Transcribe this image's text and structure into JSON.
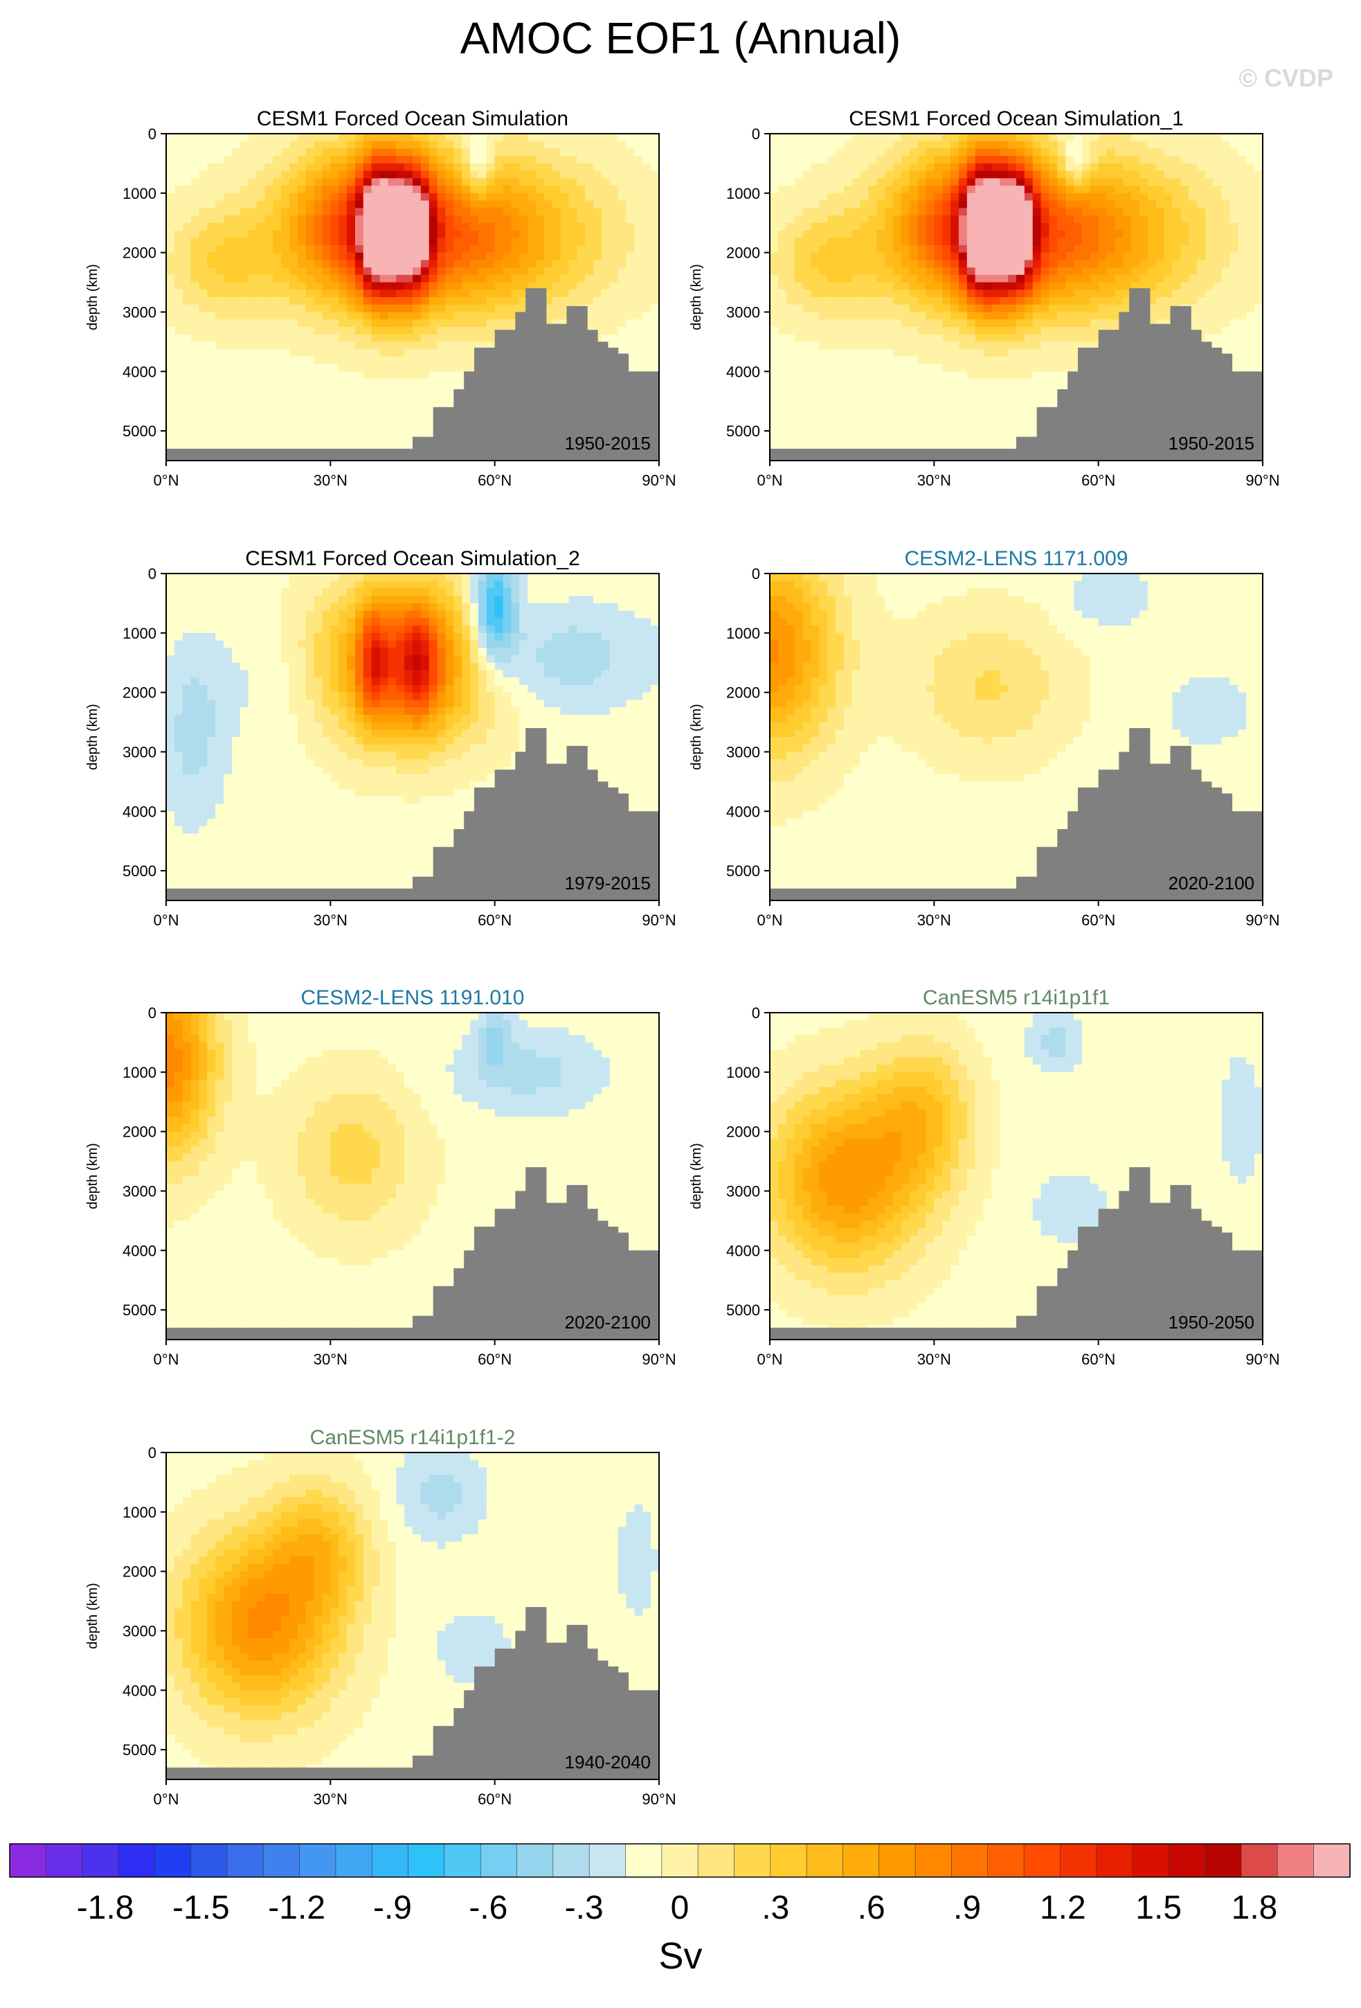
{
  "title": "AMOC EOF1 (Annual)",
  "watermark": "© CVDP",
  "chart_data": [
    {
      "type": "heatmap",
      "title": "CESM1 Forced Ocean Simulation",
      "title_color": "#000000",
      "period": "1950-2015",
      "ylabel": "depth (km)",
      "xlim": [
        0,
        90
      ],
      "ylim": [
        5500,
        0
      ],
      "xticks": [
        "0°N",
        "30°N",
        "60°N",
        "90°N"
      ],
      "yticks": [
        "0",
        "1000",
        "2000",
        "3000",
        "4000",
        "5000"
      ],
      "blobs": [
        [
          50,
          1700,
          25,
          1300,
          1.0
        ],
        [
          35,
          1500,
          12,
          1200,
          0.6
        ],
        [
          38,
          1600,
          3,
          1100,
          1.0
        ],
        [
          42,
          1600,
          4,
          1100,
          1.2
        ],
        [
          46,
          1600,
          3,
          1000,
          0.9
        ],
        [
          57,
          600,
          3,
          600,
          -0.4
        ],
        [
          10,
          2200,
          10,
          900,
          0.3
        ]
      ],
      "bathymetry": [
        5300,
        5300,
        5300,
        5300,
        5300,
        5300,
        5300,
        5300,
        5300,
        5300,
        5300,
        5300,
        5300,
        5300,
        5300,
        5300,
        5300,
        5300,
        5300,
        5300,
        5300,
        5300,
        5300,
        5300,
        5100,
        5100,
        4600,
        4600,
        4300,
        4000,
        3600,
        3600,
        3300,
        3300,
        3000,
        2600,
        2600,
        3200,
        3200,
        2900,
        2900,
        3300,
        3500,
        3600,
        3700,
        4000,
        4000,
        4000
      ]
    },
    {
      "type": "heatmap",
      "title": "CESM1 Forced Ocean Simulation_1",
      "title_color": "#000000",
      "period": "1950-2015",
      "ylabel": "depth (km)",
      "xlim": [
        0,
        90
      ],
      "ylim": [
        5500,
        0
      ],
      "xticks": [
        "0°N",
        "30°N",
        "60°N",
        "90°N"
      ],
      "yticks": [
        "0",
        "1000",
        "2000",
        "3000",
        "4000",
        "5000"
      ],
      "blobs": [
        [
          50,
          1700,
          25,
          1300,
          1.0
        ],
        [
          35,
          1500,
          12,
          1200,
          0.6
        ],
        [
          38,
          1600,
          3,
          1100,
          1.0
        ],
        [
          42,
          1600,
          4,
          1100,
          1.3
        ],
        [
          46,
          1600,
          3,
          1000,
          0.9
        ],
        [
          56,
          500,
          3,
          500,
          -0.4
        ],
        [
          10,
          2200,
          10,
          900,
          0.3
        ]
      ],
      "bathymetry": [
        5300,
        5300,
        5300,
        5300,
        5300,
        5300,
        5300,
        5300,
        5300,
        5300,
        5300,
        5300,
        5300,
        5300,
        5300,
        5300,
        5300,
        5300,
        5300,
        5300,
        5300,
        5300,
        5300,
        5300,
        5100,
        5100,
        4600,
        4600,
        4300,
        4000,
        3600,
        3600,
        3300,
        3300,
        3000,
        2600,
        2600,
        3200,
        3200,
        2900,
        2900,
        3300,
        3500,
        3600,
        3700,
        4000,
        4000,
        4000
      ]
    },
    {
      "type": "heatmap",
      "title": "CESM1 Forced Ocean Simulation_2",
      "title_color": "#000000",
      "period": "1979-2015",
      "ylabel": "depth (km)",
      "xlim": [
        0,
        90
      ],
      "ylim": [
        5500,
        0
      ],
      "xticks": [
        "0°N",
        "30°N",
        "60°N",
        "90°N"
      ],
      "yticks": [
        "0",
        "1000",
        "2000",
        "3000",
        "4000",
        "5000"
      ],
      "blobs": [
        [
          44,
          1500,
          16,
          1300,
          0.9
        ],
        [
          46,
          1500,
          4,
          1000,
          0.6
        ],
        [
          38,
          1500,
          3,
          1000,
          0.6
        ],
        [
          60,
          600,
          4,
          900,
          -0.7
        ],
        [
          70,
          1400,
          18,
          900,
          -0.25
        ],
        [
          5,
          2700,
          6,
          1500,
          -0.2
        ],
        [
          20,
          1800,
          12,
          1000,
          -0.1
        ]
      ],
      "bathymetry": [
        5300,
        5300,
        5300,
        5300,
        5300,
        5300,
        5300,
        5300,
        5300,
        5300,
        5300,
        5300,
        5300,
        5300,
        5300,
        5300,
        5300,
        5300,
        5300,
        5300,
        5300,
        5300,
        5300,
        5300,
        5100,
        5100,
        4600,
        4600,
        4300,
        4000,
        3600,
        3600,
        3300,
        3300,
        3000,
        2600,
        2600,
        3200,
        3200,
        2900,
        2900,
        3300,
        3500,
        3600,
        3700,
        4000,
        4000,
        4000
      ]
    },
    {
      "type": "heatmap",
      "title": "CESM2-LENS 1171.009",
      "title_color": "#1c7aa3",
      "period": "2020-2100",
      "ylabel": "depth (km)",
      "xlim": [
        0,
        90
      ],
      "ylim": [
        5500,
        0
      ],
      "xticks": [
        "0°N",
        "30°N",
        "60°N",
        "90°N"
      ],
      "yticks": [
        "0",
        "1000",
        "2000",
        "3000",
        "4000",
        "5000"
      ],
      "blobs": [
        [
          0,
          1300,
          12,
          1700,
          0.75
        ],
        [
          40,
          1900,
          14,
          1200,
          0.25
        ],
        [
          62,
          400,
          8,
          500,
          -0.15
        ],
        [
          80,
          2300,
          10,
          800,
          -0.1
        ]
      ],
      "bathymetry": [
        5300,
        5300,
        5300,
        5300,
        5300,
        5300,
        5300,
        5300,
        5300,
        5300,
        5300,
        5300,
        5300,
        5300,
        5300,
        5300,
        5300,
        5300,
        5300,
        5300,
        5300,
        5300,
        5300,
        5300,
        5100,
        5100,
        4600,
        4600,
        4300,
        4000,
        3600,
        3600,
        3300,
        3300,
        3000,
        2600,
        2600,
        3200,
        3200,
        2900,
        2900,
        3300,
        3500,
        3600,
        3700,
        4000,
        4000,
        4000
      ]
    },
    {
      "type": "heatmap",
      "title": "CESM2-LENS 1191.010",
      "title_color": "#1c7aa3",
      "period": "2020-2100",
      "ylabel": "depth (km)",
      "xlim": [
        0,
        90
      ],
      "ylim": [
        5500,
        0
      ],
      "xticks": [
        "0°N",
        "30°N",
        "60°N",
        "90°N"
      ],
      "yticks": [
        "0",
        "1000",
        "2000",
        "3000",
        "4000",
        "5000"
      ],
      "blobs": [
        [
          0,
          800,
          9,
          1600,
          0.8
        ],
        [
          34,
          2400,
          12,
          1300,
          0.28
        ],
        [
          66,
          1000,
          14,
          700,
          -0.2
        ],
        [
          60,
          400,
          3,
          500,
          -0.25
        ]
      ],
      "bathymetry": [
        5300,
        5300,
        5300,
        5300,
        5300,
        5300,
        5300,
        5300,
        5300,
        5300,
        5300,
        5300,
        5300,
        5300,
        5300,
        5300,
        5300,
        5300,
        5300,
        5300,
        5300,
        5300,
        5300,
        5300,
        5100,
        5100,
        4600,
        4600,
        4300,
        4000,
        3600,
        3600,
        3300,
        3300,
        3000,
        2600,
        2600,
        3200,
        3200,
        2900,
        2900,
        3300,
        3500,
        3600,
        3700,
        4000,
        4000,
        4000
      ]
    },
    {
      "type": "heatmap",
      "title": "CanESM5 r14i1p1f1",
      "title_color": "#5e8a63",
      "period": "1950-2050",
      "ylabel": "depth (km)",
      "xlim": [
        0,
        90
      ],
      "ylim": [
        5500,
        0
      ],
      "xticks": [
        "0°N",
        "30°N",
        "60°N",
        "90°N"
      ],
      "yticks": [
        "0",
        "1000",
        "2000",
        "3000",
        "4000",
        "5000"
      ],
      "blobs": [
        [
          14,
          2800,
          14,
          1500,
          0.72
        ],
        [
          28,
          1700,
          9,
          1200,
          0.4
        ],
        [
          52,
          500,
          5,
          500,
          -0.2
        ],
        [
          86,
          1800,
          4,
          1100,
          -0.15
        ],
        [
          55,
          3300,
          8,
          700,
          -0.12
        ]
      ],
      "bathymetry": [
        5300,
        5300,
        5300,
        5300,
        5300,
        5300,
        5300,
        5300,
        5300,
        5300,
        5300,
        5300,
        5300,
        5300,
        5300,
        5300,
        5300,
        5300,
        5300,
        5300,
        5300,
        5300,
        5300,
        5300,
        5100,
        5100,
        4600,
        4600,
        4300,
        4000,
        3600,
        3600,
        3300,
        3300,
        3000,
        2600,
        2600,
        3200,
        3200,
        2900,
        2900,
        3300,
        3500,
        3600,
        3700,
        4000,
        4000,
        4000
      ]
    },
    {
      "type": "heatmap",
      "title": "CanESM5 r14i1p1f1-2",
      "title_color": "#5e8a63",
      "period": "1940-2040",
      "ylabel": "depth (km)",
      "xlim": [
        0,
        90
      ],
      "ylim": [
        5500,
        0
      ],
      "xticks": [
        "0°N",
        "30°N",
        "60°N",
        "90°N"
      ],
      "yticks": [
        "0",
        "1000",
        "2000",
        "3000",
        "4000",
        "5000"
      ],
      "blobs": [
        [
          17,
          2900,
          14,
          1500,
          0.75
        ],
        [
          28,
          1600,
          9,
          1100,
          0.4
        ],
        [
          50,
          700,
          8,
          800,
          -0.2
        ],
        [
          86,
          1800,
          4,
          1100,
          -0.12
        ],
        [
          56,
          3300,
          8,
          700,
          -0.12
        ]
      ],
      "bathymetry": [
        5300,
        5300,
        5300,
        5300,
        5300,
        5300,
        5300,
        5300,
        5300,
        5300,
        5300,
        5300,
        5300,
        5300,
        5300,
        5300,
        5300,
        5300,
        5300,
        5300,
        5300,
        5300,
        5300,
        5300,
        5100,
        5100,
        4600,
        4600,
        4300,
        4000,
        3600,
        3600,
        3300,
        3300,
        3000,
        2600,
        2600,
        3200,
        3200,
        2900,
        2900,
        3300,
        3500,
        3600,
        3700,
        4000,
        4000,
        4000
      ]
    }
  ],
  "colorbar": {
    "units": "Sv",
    "labels": [
      "-1.8",
      "-1.5",
      "-1.2",
      "-.9",
      "-.6",
      "-.3",
      "0",
      ".3",
      ".6",
      ".9",
      "1.2",
      "1.5",
      "1.8"
    ],
    "colors": [
      "#8a2be2",
      "#6a2fe8",
      "#4c32ee",
      "#2e2ef5",
      "#1f3ff0",
      "#2d58ea",
      "#3a6eea",
      "#3f82ee",
      "#4396f2",
      "#3fa8f5",
      "#35b7f7",
      "#2ec2f8",
      "#4fc8f5",
      "#74cff2",
      "#95d6ee",
      "#aedced",
      "#c8e6f2",
      "#ffffcc",
      "#fff3a8",
      "#ffe680",
      "#ffd84d",
      "#ffcb2e",
      "#ffbb1a",
      "#ffab0a",
      "#ff9a00",
      "#ff8800",
      "#ff7400",
      "#ff5f00",
      "#ff4a00",
      "#f53300",
      "#e81e00",
      "#d90f00",
      "#c80800",
      "#b80400",
      "#dd4a4a",
      "#f08080",
      "#f8b4b4"
    ]
  }
}
